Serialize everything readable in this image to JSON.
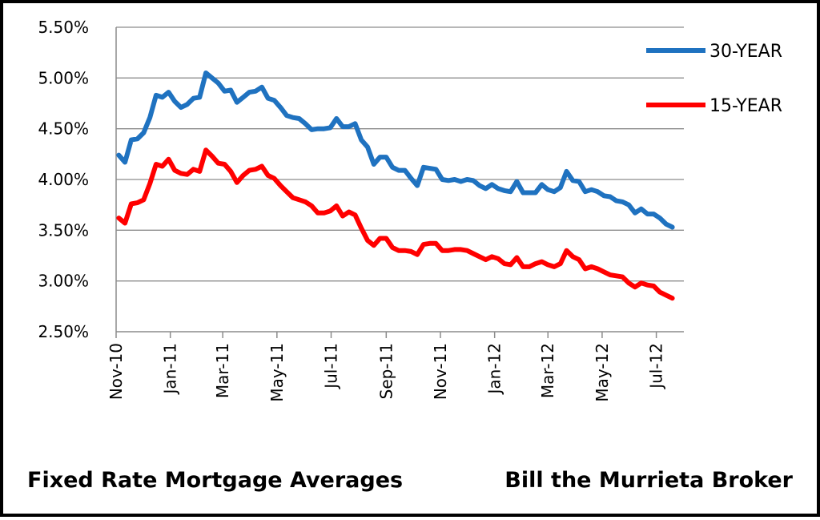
{
  "chart_data": {
    "type": "line",
    "y_ticks": [
      "5.50%",
      "5.00%",
      "4.50%",
      "4.00%",
      "3.50%",
      "3.00%",
      "2.50%"
    ],
    "ylim": [
      2.5,
      5.5
    ],
    "grid": true,
    "x_ticks": [
      "Nov-10",
      "Jan-11",
      "Mar-11",
      "May-11",
      "Jul-11",
      "Sep-11",
      "Nov-11",
      "Jan-12",
      "Mar-12",
      "May-12",
      "Jul-12"
    ],
    "legend_position": "top-right",
    "series": [
      {
        "name": "30-YEAR",
        "color": "#1f72c0",
        "dates": [
          "2010-11-04",
          "2010-11-11",
          "2010-11-18",
          "2010-11-25",
          "2010-12-02",
          "2010-12-09",
          "2010-12-16",
          "2010-12-23",
          "2010-12-30",
          "2011-01-06",
          "2011-01-13",
          "2011-01-20",
          "2011-01-27",
          "2011-02-03",
          "2011-02-10",
          "2011-02-17",
          "2011-02-24",
          "2011-03-03",
          "2011-03-10",
          "2011-03-17",
          "2011-03-24",
          "2011-03-31",
          "2011-04-07",
          "2011-04-14",
          "2011-04-21",
          "2011-04-28",
          "2011-05-05",
          "2011-05-12",
          "2011-05-19",
          "2011-05-26",
          "2011-06-02",
          "2011-06-09",
          "2011-06-16",
          "2011-06-23",
          "2011-06-30",
          "2011-07-07",
          "2011-07-14",
          "2011-07-21",
          "2011-07-28",
          "2011-08-04",
          "2011-08-11",
          "2011-08-18",
          "2011-08-25",
          "2011-09-01",
          "2011-09-08",
          "2011-09-15",
          "2011-09-22",
          "2011-09-29",
          "2011-10-06",
          "2011-10-13",
          "2011-10-20",
          "2011-10-27",
          "2011-11-03",
          "2011-11-10",
          "2011-11-17",
          "2011-11-24",
          "2011-12-01",
          "2011-12-08",
          "2011-12-15",
          "2011-12-22",
          "2011-12-29",
          "2012-01-05",
          "2012-01-12",
          "2012-01-19",
          "2012-01-26",
          "2012-02-02",
          "2012-02-09",
          "2012-02-16",
          "2012-02-23",
          "2012-03-01",
          "2012-03-08",
          "2012-03-15",
          "2012-03-22",
          "2012-03-29",
          "2012-04-05",
          "2012-04-12",
          "2012-04-19",
          "2012-04-26",
          "2012-05-03",
          "2012-05-10",
          "2012-05-17",
          "2012-05-24",
          "2012-05-31",
          "2012-06-07",
          "2012-06-14",
          "2012-06-21",
          "2012-06-28",
          "2012-07-05",
          "2012-07-12",
          "2012-07-19"
        ],
        "values": [
          4.24,
          4.17,
          4.39,
          4.4,
          4.46,
          4.61,
          4.83,
          4.81,
          4.86,
          4.77,
          4.71,
          4.74,
          4.8,
          4.81,
          5.05,
          5.0,
          4.95,
          4.87,
          4.88,
          4.76,
          4.81,
          4.86,
          4.87,
          4.91,
          4.8,
          4.78,
          4.71,
          4.63,
          4.61,
          4.6,
          4.55,
          4.49,
          4.5,
          4.5,
          4.51,
          4.6,
          4.52,
          4.52,
          4.55,
          4.39,
          4.32,
          4.15,
          4.22,
          4.22,
          4.12,
          4.09,
          4.09,
          4.01,
          3.94,
          4.12,
          4.11,
          4.1,
          4.0,
          3.99,
          4.0,
          3.98,
          4.0,
          3.99,
          3.94,
          3.91,
          3.95,
          3.91,
          3.89,
          3.88,
          3.98,
          3.87,
          3.87,
          3.87,
          3.95,
          3.9,
          3.88,
          3.92,
          4.08,
          3.99,
          3.98,
          3.88,
          3.9,
          3.88,
          3.84,
          3.83,
          3.79,
          3.78,
          3.75,
          3.67,
          3.71,
          3.66,
          3.66,
          3.62,
          3.56,
          3.53
        ]
      },
      {
        "name": "15-YEAR",
        "color": "#ff0000",
        "dates": [
          "2010-11-04",
          "2010-11-11",
          "2010-11-18",
          "2010-11-25",
          "2010-12-02",
          "2010-12-09",
          "2010-12-16",
          "2010-12-23",
          "2010-12-30",
          "2011-01-06",
          "2011-01-13",
          "2011-01-20",
          "2011-01-27",
          "2011-02-03",
          "2011-02-10",
          "2011-02-17",
          "2011-02-24",
          "2011-03-03",
          "2011-03-10",
          "2011-03-17",
          "2011-03-24",
          "2011-03-31",
          "2011-04-07",
          "2011-04-14",
          "2011-04-21",
          "2011-04-28",
          "2011-05-05",
          "2011-05-12",
          "2011-05-19",
          "2011-05-26",
          "2011-06-02",
          "2011-06-09",
          "2011-06-16",
          "2011-06-23",
          "2011-06-30",
          "2011-07-07",
          "2011-07-14",
          "2011-07-21",
          "2011-07-28",
          "2011-08-04",
          "2011-08-11",
          "2011-08-18",
          "2011-08-25",
          "2011-09-01",
          "2011-09-08",
          "2011-09-15",
          "2011-09-22",
          "2011-09-29",
          "2011-10-06",
          "2011-10-13",
          "2011-10-20",
          "2011-10-27",
          "2011-11-03",
          "2011-11-10",
          "2011-11-17",
          "2011-11-24",
          "2011-12-01",
          "2011-12-08",
          "2011-12-15",
          "2011-12-22",
          "2011-12-29",
          "2012-01-05",
          "2012-01-12",
          "2012-01-19",
          "2012-01-26",
          "2012-02-02",
          "2012-02-09",
          "2012-02-16",
          "2012-02-23",
          "2012-03-01",
          "2012-03-08",
          "2012-03-15",
          "2012-03-22",
          "2012-03-29",
          "2012-04-05",
          "2012-04-12",
          "2012-04-19",
          "2012-04-26",
          "2012-05-03",
          "2012-05-10",
          "2012-05-17",
          "2012-05-24",
          "2012-05-31",
          "2012-06-07",
          "2012-06-14",
          "2012-06-21",
          "2012-06-28",
          "2012-07-05",
          "2012-07-12",
          "2012-07-19"
        ],
        "values": [
          3.62,
          3.57,
          3.76,
          3.77,
          3.8,
          3.96,
          4.15,
          4.13,
          4.2,
          4.09,
          4.06,
          4.05,
          4.1,
          4.08,
          4.29,
          4.23,
          4.16,
          4.15,
          4.08,
          3.97,
          4.04,
          4.09,
          4.1,
          4.13,
          4.04,
          4.01,
          3.94,
          3.88,
          3.82,
          3.8,
          3.78,
          3.74,
          3.67,
          3.67,
          3.69,
          3.74,
          3.64,
          3.68,
          3.65,
          3.52,
          3.4,
          3.35,
          3.42,
          3.42,
          3.33,
          3.3,
          3.3,
          3.29,
          3.26,
          3.36,
          3.37,
          3.37,
          3.3,
          3.3,
          3.31,
          3.31,
          3.3,
          3.27,
          3.24,
          3.21,
          3.24,
          3.22,
          3.17,
          3.16,
          3.23,
          3.14,
          3.14,
          3.17,
          3.19,
          3.16,
          3.14,
          3.17,
          3.3,
          3.24,
          3.21,
          3.12,
          3.14,
          3.12,
          3.09,
          3.06,
          3.05,
          3.04,
          2.98,
          2.94,
          2.98,
          2.96,
          2.95,
          2.89,
          2.86,
          2.83
        ]
      }
    ]
  },
  "captions": {
    "left": "Fixed Rate Mortgage Averages",
    "right": "Bill the Murrieta Broker"
  }
}
